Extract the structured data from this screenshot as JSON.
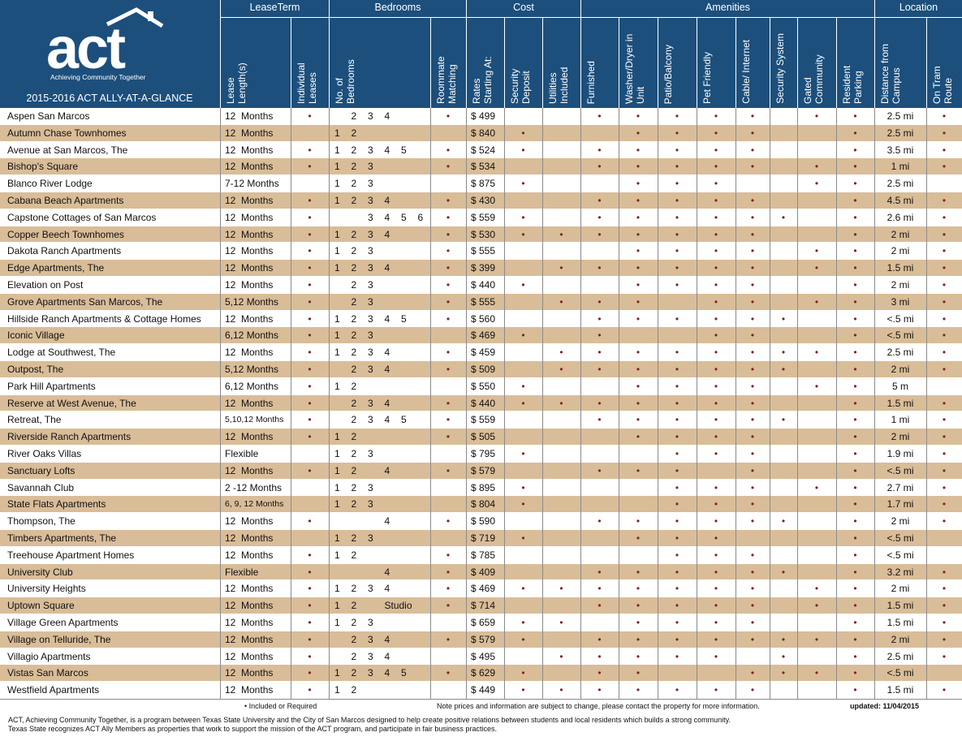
{
  "header": {
    "logo": {
      "wordmark": "act",
      "tagline": "Achieving Community Together"
    },
    "title": "2015-2016 ACT ALLY-AT-A-GLANCE",
    "groups": [
      {
        "label": "LeaseTerm",
        "columns": [
          "Lease Length(s)",
          "Individual Leases"
        ]
      },
      {
        "label": "Bedrooms",
        "columns": [
          "No. of Bedrooms",
          "Roommate Matching"
        ]
      },
      {
        "label": "Cost",
        "columns": [
          "Rates Starting At:",
          "Security Deposit",
          "Utilities Included"
        ]
      },
      {
        "label": "Amenities",
        "columns": [
          "Furnished",
          "Washer/Dryer in Unit",
          "Patio/Balcony",
          "Pet Friendly",
          "Cable/ Internet",
          "Security System",
          "Gated Community",
          "Resident Parking"
        ]
      },
      {
        "label": "Location",
        "columns": [
          "Distance from Campus",
          "On Tram Route"
        ]
      }
    ]
  },
  "table": {
    "rows": [
      [
        "Aspen San Marcos",
        "12  Months",
        "•",
        [
          "2",
          "3",
          "4"
        ],
        "•",
        "$ 499",
        null,
        null,
        "•",
        "•",
        "•",
        "•",
        "•",
        null,
        "•",
        "•",
        "2.5 mi",
        "•"
      ],
      [
        "Autumn Chase Townhomes",
        "12  Months",
        null,
        [
          "1",
          "2"
        ],
        null,
        "$ 840",
        "•",
        null,
        null,
        "•",
        "•",
        "•",
        "•",
        null,
        null,
        "•",
        "2.5 mi",
        "•"
      ],
      [
        "Avenue at San Marcos, The",
        "12  Months",
        "•",
        [
          "1",
          "2",
          "3",
          "4",
          "5"
        ],
        "•",
        "$ 524",
        "•",
        null,
        "•",
        "•",
        "•",
        "•",
        "•",
        null,
        null,
        "•",
        "3.5 mi",
        "•"
      ],
      [
        "Bishop's Square",
        "12  Months",
        "•",
        [
          "1",
          "2",
          "3"
        ],
        "•",
        "$ 534",
        null,
        null,
        "•",
        "•",
        "•",
        "•",
        "•",
        null,
        "•",
        "•",
        "1 mi",
        "•"
      ],
      [
        "Blanco River Lodge",
        "7-12 Months",
        null,
        [
          "1",
          "2",
          "3"
        ],
        null,
        "$ 875",
        "•",
        null,
        null,
        "•",
        "•",
        "•",
        null,
        null,
        "•",
        "•",
        "2.5 mi",
        null
      ],
      [
        "Cabana Beach Apartments",
        "12  Months",
        "•",
        [
          "1",
          "2",
          "3",
          "4"
        ],
        "•",
        "$ 430",
        null,
        null,
        "•",
        "•",
        "•",
        "•",
        "•",
        null,
        null,
        "•",
        "4.5 mi",
        "•"
      ],
      [
        "Capstone Cottages of San Marcos",
        "12  Months",
        "•",
        [
          "3",
          "4",
          "5",
          "6"
        ],
        "•",
        "$ 559",
        "•",
        null,
        "•",
        "•",
        "•",
        "•",
        "•",
        "•",
        null,
        "•",
        "2.6 mi",
        "•"
      ],
      [
        "Copper Beech Townhomes",
        "12  Months",
        "•",
        [
          "1",
          "2",
          "3",
          "4"
        ],
        "•",
        "$ 530",
        "•",
        "•",
        "•",
        "•",
        "•",
        "•",
        "•",
        null,
        null,
        "•",
        "2 mi",
        "•"
      ],
      [
        "Dakota Ranch Apartments",
        "12  Months",
        "•",
        [
          "1",
          "2",
          "3"
        ],
        "•",
        "$ 555",
        null,
        null,
        null,
        "•",
        "•",
        "•",
        "•",
        null,
        "•",
        "•",
        "2 mi",
        "•"
      ],
      [
        "Edge Apartments, The",
        "12  Months",
        "•",
        [
          "1",
          "2",
          "3",
          "4"
        ],
        "•",
        "$ 399",
        null,
        "•",
        "•",
        "•",
        "•",
        "•",
        "•",
        null,
        "•",
        "•",
        "1.5 mi",
        "•"
      ],
      [
        "Elevation on Post",
        "12  Months",
        "•",
        [
          "2",
          "3"
        ],
        "•",
        "$ 440",
        "•",
        null,
        null,
        "•",
        "•",
        "•",
        "•",
        null,
        null,
        "•",
        "2 mi",
        "•"
      ],
      [
        "Grove Apartments San Marcos, The",
        "5,12 Months",
        "•",
        [
          "2",
          "3"
        ],
        "•",
        "$ 555",
        null,
        "•",
        "•",
        "•",
        null,
        "•",
        "•",
        null,
        "•",
        "•",
        "3 mi",
        "•"
      ],
      [
        "Hillside Ranch Apartments & Cottage Homes",
        "12  Months",
        "•",
        [
          "1",
          "2",
          "3",
          "4",
          "5"
        ],
        "•",
        "$ 560",
        null,
        null,
        "•",
        "•",
        "•",
        "•",
        "•",
        "•",
        null,
        "•",
        "<.5 mi",
        "•"
      ],
      [
        "Iconic Village",
        "6,12 Months",
        "•",
        [
          "1",
          "2",
          "3"
        ],
        null,
        "$ 469",
        "•",
        null,
        "•",
        null,
        null,
        "•",
        "•",
        null,
        null,
        "•",
        "<.5 mi",
        "•"
      ],
      [
        "Lodge at Southwest, The",
        "12  Months",
        "•",
        [
          "1",
          "2",
          "3",
          "4"
        ],
        "•",
        "$ 459",
        null,
        "•",
        "•",
        "•",
        "•",
        "•",
        "•",
        "•",
        "•",
        "•",
        "2.5 mi",
        "•"
      ],
      [
        "Outpost, The",
        "5,12 Months",
        "•",
        [
          "2",
          "3",
          "4"
        ],
        "•",
        "$ 509",
        null,
        "•",
        "•",
        "•",
        "•",
        "•",
        "•",
        "•",
        null,
        "•",
        "2 mi",
        "•"
      ],
      [
        "Park Hill Apartments",
        "6,12 Months",
        "•",
        [
          "1",
          "2"
        ],
        null,
        "$ 550",
        "•",
        null,
        null,
        "•",
        "•",
        "•",
        "•",
        null,
        "•",
        "•",
        "5 m",
        null
      ],
      [
        "Reserve at West Avenue, The",
        "12  Months",
        "•",
        [
          "2",
          "3",
          "4"
        ],
        "•",
        "$ 440",
        "•",
        "•",
        "•",
        "•",
        "•",
        "•",
        "•",
        null,
        null,
        "•",
        "1.5 mi",
        "•"
      ],
      [
        "Retreat, The",
        "5,10,12 Months",
        "•",
        [
          "2",
          "3",
          "4",
          "5"
        ],
        "•",
        "$ 559",
        null,
        null,
        "•",
        "•",
        "•",
        "•",
        "•",
        "•",
        null,
        "•",
        "1 mi",
        "•"
      ],
      [
        "Riverside Ranch Apartments",
        "12  Months",
        "•",
        [
          "1",
          "2"
        ],
        "•",
        "$ 505",
        null,
        null,
        null,
        "•",
        "•",
        "•",
        "•",
        null,
        null,
        "•",
        "2 mi",
        "•"
      ],
      [
        "River Oaks Villas",
        "Flexible",
        null,
        [
          "1",
          "2",
          "3"
        ],
        null,
        "$ 795",
        "•",
        null,
        null,
        null,
        "•",
        "•",
        "•",
        null,
        null,
        "•",
        "1.9 mi",
        "•"
      ],
      [
        "Sanctuary Lofts",
        "12  Months",
        "•",
        [
          "1",
          "2",
          "4"
        ],
        "•",
        "$ 579",
        null,
        null,
        "•",
        "•",
        "•",
        null,
        "•",
        null,
        null,
        "•",
        "<.5 mi",
        "•"
      ],
      [
        "Savannah Club",
        "2 -12 Months",
        null,
        [
          "1",
          "2",
          "3"
        ],
        null,
        "$ 895",
        "•",
        null,
        null,
        null,
        "•",
        "•",
        "•",
        null,
        "•",
        "•",
        "2.7 mi",
        "•"
      ],
      [
        "State Flats Apartments",
        "6, 9, 12 Months",
        null,
        [
          "1",
          "2",
          "3"
        ],
        null,
        "$ 804",
        "•",
        null,
        null,
        null,
        "•",
        "•",
        "•",
        null,
        null,
        "•",
        "1.7 mi",
        "•"
      ],
      [
        "Thompson, The",
        "12  Months",
        "•",
        [
          "4"
        ],
        "•",
        "$ 590",
        null,
        null,
        "•",
        "•",
        "•",
        "•",
        "•",
        "•",
        null,
        "•",
        "2 mi",
        "•"
      ],
      [
        "Timbers Apartments, The",
        "12  Months",
        null,
        [
          "1",
          "2",
          "3"
        ],
        null,
        "$ 719",
        "•",
        null,
        null,
        "•",
        "•",
        "•",
        null,
        null,
        null,
        "•",
        "<.5 mi",
        null
      ],
      [
        "Treehouse Apartment Homes",
        "12  Months",
        "•",
        [
          "1",
          "2"
        ],
        "•",
        "$ 785",
        null,
        null,
        null,
        null,
        "•",
        "•",
        "•",
        null,
        null,
        "•",
        "<.5 mi",
        null
      ],
      [
        "University Club",
        "Flexible",
        "•",
        [
          "4"
        ],
        "•",
        "$ 409",
        null,
        null,
        "•",
        "•",
        "•",
        "•",
        "•",
        "•",
        null,
        "•",
        "3.2 mi",
        "•"
      ],
      [
        "University Heights",
        "12  Months",
        "•",
        [
          "1",
          "2",
          "3",
          "4"
        ],
        "•",
        "$ 469",
        "•",
        "•",
        "•",
        "•",
        "•",
        "•",
        "•",
        null,
        "•",
        "•",
        "2 mi",
        "•"
      ],
      [
        "Uptown Square",
        "12  Months",
        "•",
        [
          "1",
          "2",
          "Studio"
        ],
        "•",
        "$ 714",
        null,
        null,
        "•",
        "•",
        "•",
        "•",
        "•",
        null,
        "•",
        "•",
        "1.5 mi",
        "•"
      ],
      [
        "Village Green Apartments",
        "12  Months",
        "•",
        [
          "1",
          "2",
          "3"
        ],
        null,
        "$ 659",
        "•",
        "•",
        null,
        "•",
        "•",
        "•",
        "•",
        null,
        null,
        "•",
        "1.5 mi",
        "•"
      ],
      [
        "Village on Telluride, The",
        "12  Months",
        "•",
        [
          "2",
          "3",
          "4"
        ],
        "•",
        "$ 579",
        "•",
        null,
        "•",
        "•",
        "•",
        "•",
        "•",
        "•",
        "•",
        "•",
        "2 mi",
        "•"
      ],
      [
        "Villagio Apartments",
        "12  Months",
        "•",
        [
          "2",
          "3",
          "4"
        ],
        null,
        "$ 495",
        null,
        "•",
        "•",
        "•",
        "•",
        "•",
        null,
        "•",
        null,
        "•",
        "2.5 mi",
        "•"
      ],
      [
        "Vistas San Marcos",
        "12  Months",
        "•",
        [
          "1",
          "2",
          "3",
          "4",
          "5"
        ],
        "•",
        "$ 629",
        "•",
        null,
        "•",
        "•",
        null,
        null,
        "•",
        "•",
        "•",
        "•",
        "<.5 mi",
        null
      ],
      [
        "Westfield Apartments",
        "12  Months",
        "•",
        [
          "1",
          "2"
        ],
        null,
        "$ 449",
        "•",
        "•",
        "•",
        "•",
        "•",
        "•",
        "•",
        null,
        null,
        "•",
        "1.5 mi",
        "•"
      ]
    ]
  },
  "footer": {
    "legend": "• Included or Required",
    "note": "Note prices and information are subject to change, please contact the property for more information.",
    "updated": "updated: 11/04/2015",
    "about": [
      "ACT, Achieving Community Together, is a program between Texas State University and the City of San Marcos designed to help create positive relations between students and local residents which builds a strong community.",
      "Texas State recognizes ACT Ally Members as properties that work to support the mission of the ACT program, and participate in fair business practices."
    ]
  }
}
